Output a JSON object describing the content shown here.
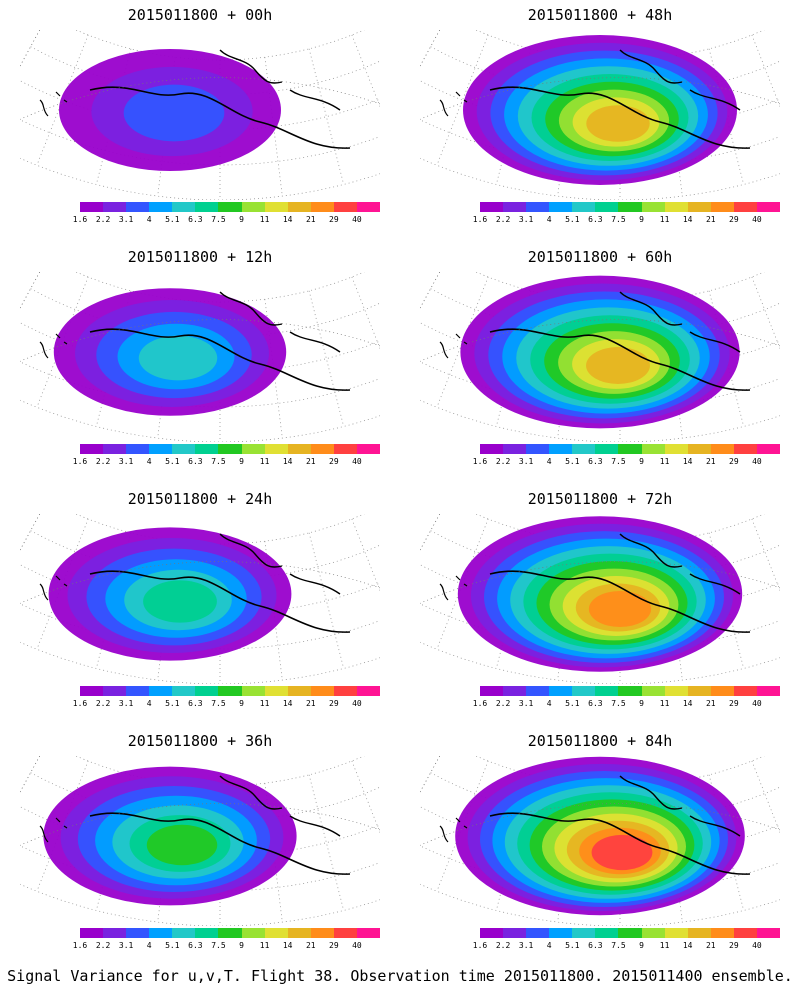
{
  "panels": [
    {
      "title": "2015011800 + 00h",
      "intensity": 0.25
    },
    {
      "title": "2015011800 + 48h",
      "intensity": 0.75
    },
    {
      "title": "2015011800 + 12h",
      "intensity": 0.35
    },
    {
      "title": "2015011800 + 60h",
      "intensity": 0.8
    },
    {
      "title": "2015011800 + 24h",
      "intensity": 0.45
    },
    {
      "title": "2015011800 + 72h",
      "intensity": 0.85
    },
    {
      "title": "2015011800 + 36h",
      "intensity": 0.55
    },
    {
      "title": "2015011800 + 84h",
      "intensity": 0.9
    }
  ],
  "colorbar": {
    "colors": [
      "#9900cc",
      "#7a22e0",
      "#3355ff",
      "#00a0ff",
      "#22c8c8",
      "#00d090",
      "#22c822",
      "#99e233",
      "#e0e033",
      "#e6b422",
      "#ff8c1a",
      "#ff4040",
      "#ff1493"
    ],
    "ticks": [
      "1.6",
      "2.2",
      "3.1",
      "4",
      "5.1",
      "6.3",
      "7.5",
      "9",
      "11",
      "14",
      "21",
      "29",
      "40"
    ]
  },
  "footer": "Signal Variance for u,v,T. Flight 38. Observation time 2015011800. 2015011400 ensemble."
}
